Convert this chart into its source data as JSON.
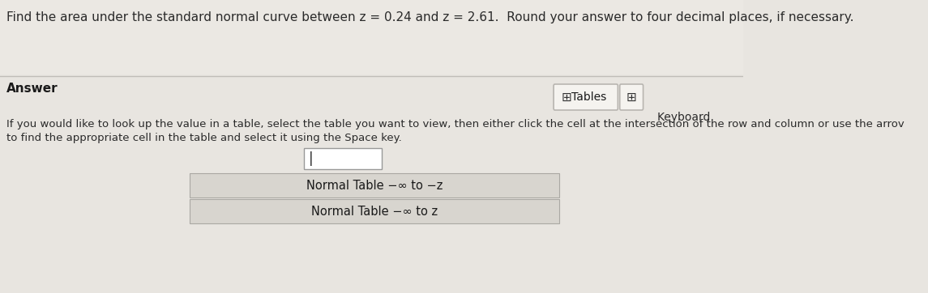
{
  "background_color": "#e8e5e0",
  "top_band_color": "#c8c5bf",
  "question_text": "Find the area under the standard normal curve between z = 0.24 and z = 2.61.  Round your answer to four decimal places, if necessary.",
  "answer_label": "Answer",
  "tables_button_text": "  Tables",
  "keyboard_text": "Keyboard ",
  "instruction_line1": "If you would like to look up the value in a table, select the table you want to view, then either click the cell at the intersection of the row and column or use the arrov",
  "instruction_line2": "to find the appropriate cell in the table and select it using the Space key.",
  "table_option_1": "Normal Table −∞ to −z",
  "table_option_2": "Normal Table −∞ to z",
  "question_fontsize": 11,
  "answer_fontsize": 11,
  "instruction_fontsize": 9.5,
  "button_fontsize": 10,
  "table_fontsize": 10.5,
  "keyboard_fontsize": 10
}
